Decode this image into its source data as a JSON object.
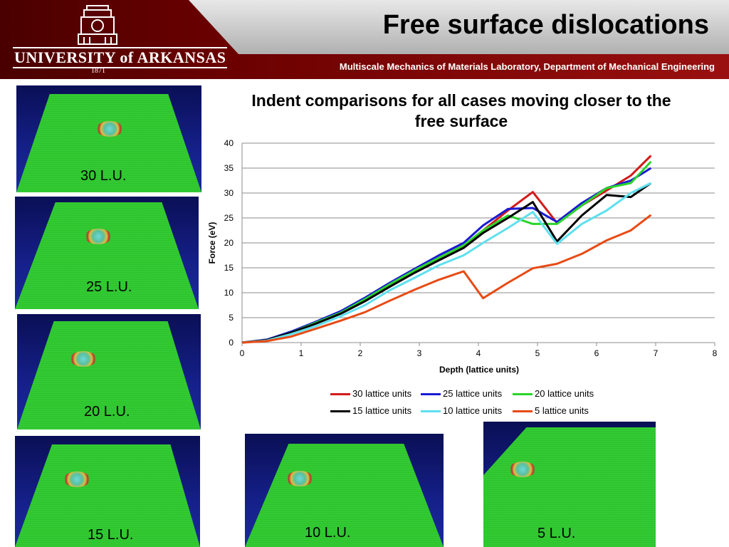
{
  "slide": {
    "title": "Free surface dislocations",
    "subtitle": "Multiscale Mechanics of Materials Laboratory, Department of Mechanical Engineering",
    "logo_text": "UNIVERSITY of ARKANSAS",
    "logo_year": "1871"
  },
  "panels": [
    {
      "label": "30 L.U."
    },
    {
      "label": "25 L.U."
    },
    {
      "label": "20 L.U."
    },
    {
      "label": "15 L.U."
    },
    {
      "label": "10 L.U."
    },
    {
      "label": "5 L.U."
    }
  ],
  "chart_data": {
    "type": "line",
    "title": "Indent comparisons for all cases moving closer to the free surface",
    "xlabel": "Depth (lattice units)",
    "ylabel": "Force (eV)",
    "xlim": [
      0,
      8
    ],
    "ylim": [
      0,
      40
    ],
    "xticks": [
      0,
      1,
      2,
      3,
      4,
      5,
      6,
      7,
      8
    ],
    "yticks": [
      0,
      5,
      10,
      15,
      20,
      25,
      30,
      35,
      40
    ],
    "grid": "horizontal",
    "legend_position": "bottom",
    "x": [
      0,
      0.42,
      0.83,
      1.25,
      1.67,
      2.08,
      2.5,
      2.92,
      3.33,
      3.75,
      4.08,
      4.5,
      4.92,
      5.33,
      5.75,
      6.17,
      6.58,
      6.92
    ],
    "series": [
      {
        "name": "30 lattice units",
        "color": "#d41a1a",
        "values": [
          0,
          0.5,
          2,
          4,
          6,
          8.5,
          11.5,
          14.5,
          17,
          19.5,
          22.5,
          26.5,
          30.2,
          24,
          27.5,
          30.5,
          33.5,
          37.5
        ]
      },
      {
        "name": "25 lattice units",
        "color": "#1a1ad4",
        "values": [
          0,
          0.6,
          2.2,
          4.2,
          6.3,
          9,
          12,
          14.8,
          17.5,
          20,
          23.5,
          26.8,
          27,
          24.2,
          28,
          31,
          32.5,
          35
        ]
      },
      {
        "name": "20 lattice units",
        "color": "#2ad42a",
        "values": [
          0,
          0.5,
          2,
          4,
          6,
          8.7,
          11.7,
          14.5,
          17,
          19.5,
          22.5,
          25.5,
          23.8,
          23.8,
          27.5,
          31,
          32,
          36.3
        ]
      },
      {
        "name": "15 lattice units",
        "color": "#000000",
        "values": [
          0,
          0.5,
          2,
          3.8,
          5.8,
          8.3,
          11.2,
          14,
          16.5,
          19,
          22,
          25,
          28.2,
          20.3,
          25.5,
          29.6,
          29.2,
          32
        ]
      },
      {
        "name": "10 lattice units",
        "color": "#5ee0ee",
        "values": [
          0,
          0.4,
          1.7,
          3.3,
          5.3,
          7.5,
          10.5,
          13,
          15.5,
          17.5,
          20,
          23,
          26.2,
          19.8,
          23.8,
          26.5,
          30,
          32
        ]
      },
      {
        "name": "5 lattice units",
        "color": "#e84a14",
        "values": [
          0,
          0.3,
          1.2,
          2.8,
          4.4,
          6.1,
          8.4,
          10.6,
          12.6,
          14.3,
          8.9,
          12,
          14.9,
          15.8,
          17.8,
          20.5,
          22.5,
          25.6
        ]
      }
    ]
  }
}
